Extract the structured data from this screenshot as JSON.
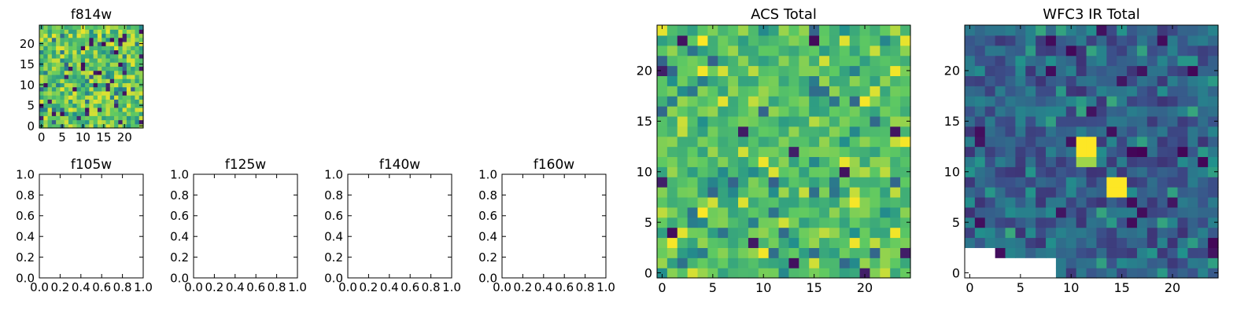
{
  "figure": {
    "background": "#ffffff",
    "colormap": "viridis",
    "colormap_stops": [
      "#440154",
      "#3b528b",
      "#21918c",
      "#5ec962",
      "#fde725"
    ]
  },
  "chart_data": [
    {
      "id": "f814w",
      "type": "heatmap",
      "title": "f814w",
      "xlim": [
        -0.5,
        24.5
      ],
      "ylim": [
        -0.5,
        24.5
      ],
      "xticks": [
        "0",
        "5",
        "10",
        "15",
        "20"
      ],
      "yticks": [
        "0",
        "5",
        "10",
        "15",
        "20"
      ],
      "grid": false,
      "rows": 25,
      "cols": 25,
      "value_range": [
        0,
        1
      ],
      "distribution": "noise, mostly 0.55-0.95 with scattered lows",
      "seed": 814
    },
    {
      "id": "f105w",
      "type": "empty",
      "title": "f105w",
      "xlim": [
        0.0,
        1.0
      ],
      "ylim": [
        0.0,
        1.0
      ],
      "xticks": [
        "0.0",
        "0.2",
        "0.4",
        "0.6",
        "0.8",
        "1.0"
      ],
      "yticks": [
        "0.0",
        "0.2",
        "0.4",
        "0.6",
        "0.8",
        "1.0"
      ],
      "grid": false
    },
    {
      "id": "f125w",
      "type": "empty",
      "title": "f125w",
      "xlim": [
        0.0,
        1.0
      ],
      "ylim": [
        0.0,
        1.0
      ],
      "xticks": [
        "0.0",
        "0.2",
        "0.4",
        "0.6",
        "0.8",
        "1.0"
      ],
      "yticks": [
        "0.0",
        "0.2",
        "0.4",
        "0.6",
        "0.8",
        "1.0"
      ],
      "grid": false
    },
    {
      "id": "f140w",
      "type": "empty",
      "title": "f140w",
      "xlim": [
        0.0,
        1.0
      ],
      "ylim": [
        0.0,
        1.0
      ],
      "xticks": [
        "0.0",
        "0.2",
        "0.4",
        "0.6",
        "0.8",
        "1.0"
      ],
      "yticks": [
        "0.0",
        "0.2",
        "0.4",
        "0.6",
        "0.8",
        "1.0"
      ],
      "grid": false
    },
    {
      "id": "f160w",
      "type": "empty",
      "title": "f160w",
      "xlim": [
        0.0,
        1.0
      ],
      "ylim": [
        0.0,
        1.0
      ],
      "xticks": [
        "0.0",
        "0.2",
        "0.4",
        "0.6",
        "0.8",
        "1.0"
      ],
      "yticks": [
        "0.0",
        "0.2",
        "0.4",
        "0.6",
        "0.8",
        "1.0"
      ],
      "grid": false
    },
    {
      "id": "acs-total",
      "type": "heatmap",
      "title": "ACS Total",
      "xlim": [
        -0.5,
        24.5
      ],
      "ylim": [
        -0.5,
        24.5
      ],
      "xticks": [
        "0",
        "5",
        "10",
        "15",
        "20"
      ],
      "yticks": [
        "0",
        "5",
        "10",
        "15",
        "20"
      ],
      "grid": false,
      "rows": 25,
      "cols": 25,
      "value_range": [
        0,
        1
      ],
      "distribution": "noise, mostly 0.55-0.85 with scattered lows",
      "seed": 2113
    },
    {
      "id": "wfc3-ir-total",
      "type": "heatmap",
      "title": "WFC3 IR Total",
      "xlim": [
        -0.5,
        24.5
      ],
      "ylim": [
        -0.5,
        24.5
      ],
      "xticks": [
        "0",
        "5",
        "10",
        "15",
        "20"
      ],
      "yticks": [
        "0",
        "5",
        "10",
        "15",
        "20"
      ],
      "grid": false,
      "rows": 25,
      "cols": 25,
      "value_range": [
        0,
        1
      ],
      "distribution": "mostly 0.15-0.45 with bright sources",
      "seed": 3160,
      "bright_cells": [
        {
          "x": 11,
          "y": 12,
          "value": 1.0
        },
        {
          "x": 12,
          "y": 12,
          "value": 1.0
        },
        {
          "x": 11,
          "y": 13,
          "value": 1.0
        },
        {
          "x": 12,
          "y": 13,
          "value": 1.0
        },
        {
          "x": 11,
          "y": 11,
          "value": 0.85
        },
        {
          "x": 12,
          "y": 11,
          "value": 0.85
        },
        {
          "x": 14,
          "y": 8,
          "value": 1.0
        },
        {
          "x": 15,
          "y": 8,
          "value": 1.0
        },
        {
          "x": 14,
          "y": 9,
          "value": 1.0
        },
        {
          "x": 15,
          "y": 9,
          "value": 1.0
        }
      ],
      "blank_cells": {
        "rows_0_2_cols": [
          0,
          8
        ],
        "row_2_cols": [
          0,
          2
        ]
      }
    }
  ]
}
